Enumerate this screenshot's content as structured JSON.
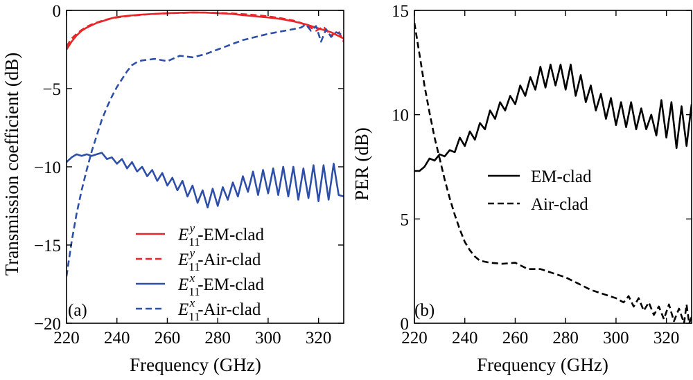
{
  "chart_data": [
    {
      "type": "line",
      "panel_label": "(a)",
      "xlabel": "Frequency (GHz)",
      "ylabel": "Transmission coefficient (dB)",
      "xlim": [
        220,
        330
      ],
      "ylim": [
        -20,
        0
      ],
      "xticks": [
        "220",
        "240",
        "260",
        "280",
        "300",
        "320"
      ],
      "xtick_values": [
        220,
        240,
        260,
        280,
        300,
        320
      ],
      "yticks": [
        "0",
        "-5",
        "-10",
        "-15",
        "-20"
      ],
      "ytick_values": [
        0,
        -5,
        -10,
        -15,
        -20
      ],
      "legend_position": "bottom-right",
      "grid": false,
      "series": [
        {
          "name": "E11y-EM-clad",
          "label_main": "E",
          "label_sup": "y",
          "label_sub": "11",
          "label_suffix": "-EM-clad",
          "color": "#e8262a",
          "dash": "solid",
          "x": [
            220,
            222,
            224,
            226,
            228,
            230,
            232,
            235,
            238,
            240,
            245,
            250,
            255,
            260,
            265,
            270,
            275,
            280,
            285,
            290,
            295,
            300,
            305,
            310,
            315,
            320,
            325,
            330
          ],
          "y": [
            -2.5,
            -2.0,
            -1.6,
            -1.3,
            -1.1,
            -0.95,
            -0.8,
            -0.65,
            -0.5,
            -0.42,
            -0.33,
            -0.27,
            -0.22,
            -0.18,
            -0.15,
            -0.13,
            -0.14,
            -0.18,
            -0.22,
            -0.3,
            -0.38,
            -0.45,
            -0.55,
            -0.7,
            -0.9,
            -1.15,
            -1.4,
            -1.8
          ]
        },
        {
          "name": "E11y-Air-clad",
          "label_main": "E",
          "label_sup": "y",
          "label_sub": "11",
          "label_suffix": "-Air-clad",
          "color": "#e8262a",
          "dash": "dashed",
          "x": [
            220,
            222,
            224,
            226,
            228,
            230,
            232,
            235,
            238,
            240,
            245,
            250,
            255,
            260,
            265,
            270,
            275,
            280,
            285,
            290,
            295,
            300,
            305,
            310,
            313,
            316,
            319,
            322,
            325,
            328,
            330
          ],
          "y": [
            -2.3,
            -1.8,
            -1.5,
            -1.25,
            -1.05,
            -0.9,
            -0.78,
            -0.62,
            -0.5,
            -0.45,
            -0.35,
            -0.28,
            -0.23,
            -0.19,
            -0.16,
            -0.14,
            -0.14,
            -0.16,
            -0.19,
            -0.24,
            -0.3,
            -0.38,
            -0.5,
            -0.65,
            -0.8,
            -1.0,
            -1.3,
            -1.05,
            -1.6,
            -1.35,
            -2.0
          ]
        },
        {
          "name": "E11x-EM-clad",
          "label_main": "E",
          "label_sup": "x",
          "label_sub": "11",
          "label_suffix": "-EM-clad",
          "color": "#2e4fa8",
          "dash": "solid",
          "x": [
            220,
            222,
            224,
            226,
            228,
            230,
            232,
            234,
            236,
            238,
            240,
            242,
            244,
            246,
            248,
            250,
            252,
            254,
            256,
            258,
            260,
            262,
            264,
            266,
            268,
            270,
            272,
            274,
            276,
            278,
            280,
            282,
            284,
            286,
            288,
            290,
            292,
            294,
            296,
            298,
            300,
            302,
            304,
            306,
            308,
            310,
            312,
            314,
            316,
            318,
            320,
            322,
            324,
            326,
            328,
            330
          ],
          "y": [
            -9.7,
            -9.4,
            -9.2,
            -9.3,
            -9.2,
            -9.3,
            -9.2,
            -9.1,
            -9.5,
            -9.4,
            -9.8,
            -9.5,
            -10.1,
            -9.7,
            -10.3,
            -10.0,
            -10.6,
            -10.2,
            -10.9,
            -10.4,
            -11.2,
            -10.7,
            -11.5,
            -10.9,
            -11.9,
            -11.2,
            -12.3,
            -11.5,
            -12.6,
            -11.4,
            -12.5,
            -11.3,
            -12.1,
            -11.0,
            -11.9,
            -10.6,
            -11.6,
            -10.3,
            -11.8,
            -10.2,
            -11.7,
            -10.1,
            -11.8,
            -10.0,
            -11.9,
            -10.0,
            -12.1,
            -10.1,
            -12.0,
            -9.9,
            -12.2,
            -9.9,
            -12.1,
            -9.8,
            -11.8,
            -11.9
          ]
        },
        {
          "name": "E11x-Air-clad",
          "label_main": "E",
          "label_sup": "x",
          "label_sub": "11",
          "label_suffix": "-Air-clad",
          "color": "#2e4fa8",
          "dash": "dashed",
          "x": [
            220,
            222,
            224,
            226,
            228,
            230,
            232,
            234,
            236,
            238,
            240,
            242,
            244,
            246,
            248,
            250,
            255,
            260,
            265,
            270,
            275,
            280,
            285,
            290,
            295,
            300,
            305,
            310,
            313,
            315,
            317,
            319,
            321,
            323,
            325,
            327,
            330
          ],
          "y": [
            -17.0,
            -14.8,
            -13.0,
            -11.5,
            -10.2,
            -9.0,
            -8.0,
            -7.0,
            -6.2,
            -5.5,
            -4.9,
            -4.4,
            -3.9,
            -3.5,
            -3.3,
            -3.2,
            -3.1,
            -3.25,
            -2.9,
            -3.0,
            -2.8,
            -2.5,
            -2.2,
            -1.9,
            -1.7,
            -1.5,
            -1.35,
            -1.2,
            -1.1,
            -0.9,
            -1.3,
            -1.0,
            -2.0,
            -1.2,
            -1.7,
            -1.4,
            -1.6
          ]
        }
      ]
    },
    {
      "type": "line",
      "panel_label": "(b)",
      "xlabel": "Frequency (GHz)",
      "ylabel": "PER (dB)",
      "xlim": [
        220,
        330
      ],
      "ylim": [
        0,
        15
      ],
      "xticks": [
        "220",
        "240",
        "260",
        "280",
        "300",
        "320"
      ],
      "xtick_values": [
        220,
        240,
        260,
        280,
        300,
        320
      ],
      "yticks": [
        "15",
        "10",
        "5",
        "0"
      ],
      "ytick_values": [
        15,
        10,
        5,
        0
      ],
      "legend_position": "center-right",
      "grid": false,
      "series": [
        {
          "name": "EM-clad",
          "color": "#000000",
          "dash": "solid",
          "x": [
            220,
            222,
            224,
            226,
            228,
            230,
            232,
            234,
            236,
            238,
            240,
            242,
            244,
            246,
            248,
            250,
            252,
            254,
            256,
            258,
            260,
            262,
            264,
            266,
            268,
            270,
            272,
            274,
            276,
            278,
            280,
            282,
            284,
            286,
            288,
            290,
            292,
            294,
            296,
            298,
            300,
            302,
            304,
            306,
            308,
            310,
            312,
            314,
            316,
            318,
            320,
            322,
            324,
            326,
            328,
            330
          ],
          "y": [
            7.3,
            7.3,
            7.5,
            7.9,
            7.8,
            8.1,
            8.0,
            8.3,
            8.2,
            8.9,
            8.5,
            9.2,
            8.8,
            9.6,
            9.3,
            10.2,
            9.8,
            10.6,
            10.2,
            10.9,
            10.5,
            11.4,
            10.9,
            11.8,
            11.2,
            12.3,
            11.3,
            12.4,
            11.4,
            12.4,
            11.2,
            12.4,
            10.9,
            11.9,
            10.6,
            11.4,
            10.2,
            11.0,
            9.8,
            10.8,
            9.5,
            10.6,
            9.4,
            10.6,
            9.3,
            10.3,
            9.3,
            10.0,
            9.0,
            10.7,
            8.9,
            10.6,
            8.4,
            10.4,
            8.5,
            10.5
          ]
        },
        {
          "name": "Air-clad",
          "color": "#000000",
          "dash": "dashed",
          "x": [
            220,
            222,
            224,
            226,
            228,
            230,
            232,
            234,
            236,
            238,
            240,
            242,
            244,
            246,
            248,
            250,
            255,
            260,
            265,
            270,
            275,
            280,
            285,
            290,
            295,
            300,
            303,
            305,
            307,
            309,
            311,
            313,
            315,
            317,
            319,
            321,
            323,
            325,
            327,
            328,
            329,
            330
          ],
          "y": [
            14.4,
            12.9,
            11.4,
            10.1,
            8.9,
            7.9,
            6.9,
            6.0,
            5.2,
            4.5,
            3.9,
            3.5,
            3.2,
            3.0,
            2.95,
            2.9,
            2.85,
            2.9,
            2.6,
            2.6,
            2.4,
            2.2,
            1.9,
            1.6,
            1.4,
            1.2,
            1.0,
            1.3,
            0.8,
            1.2,
            0.6,
            1.0,
            0.4,
            0.8,
            0.2,
            0.9,
            0.1,
            0.7,
            0.0,
            0.9,
            0.0,
            0.3
          ]
        }
      ]
    }
  ]
}
